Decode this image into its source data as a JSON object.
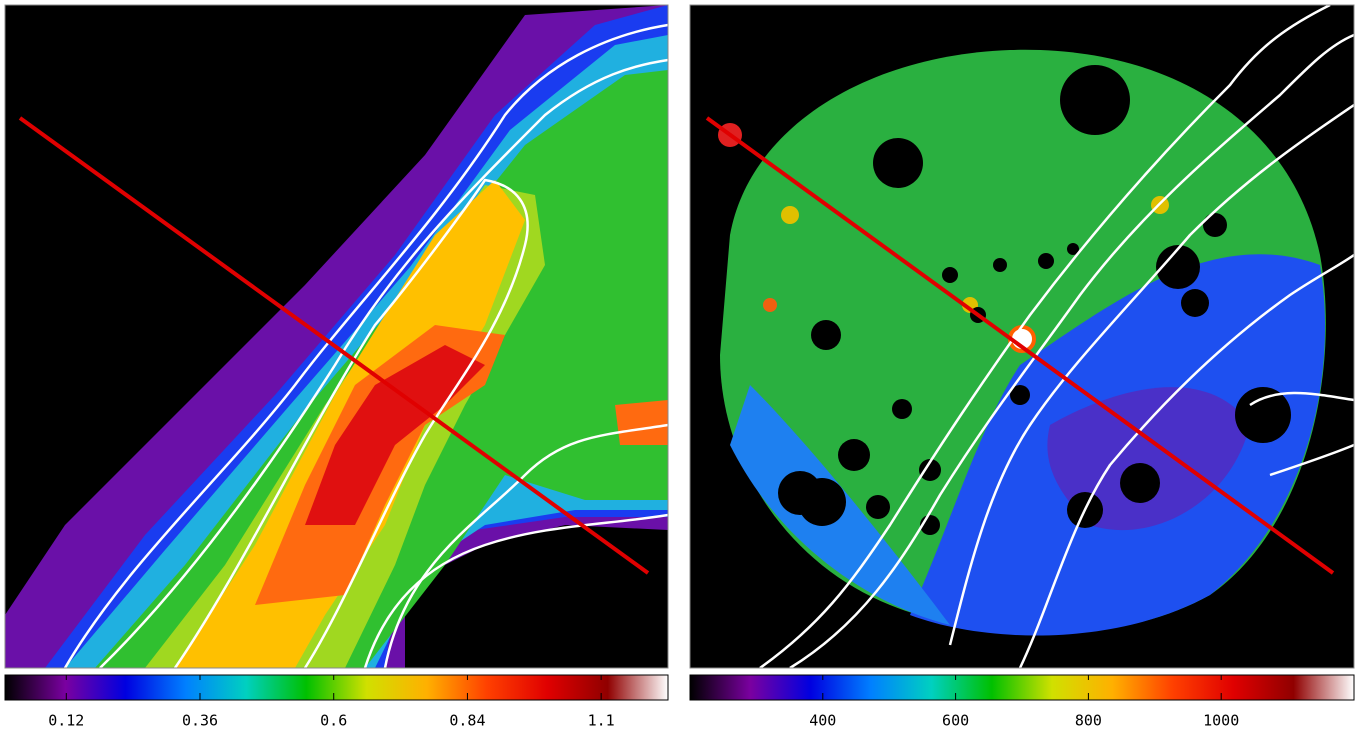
{
  "chart_data": [
    {
      "type": "image",
      "colormap": [
        "#000000",
        "#7a00a0",
        "#0000e0",
        "#0080ff",
        "#00d0c0",
        "#00c000",
        "#d0e000",
        "#ffb000",
        "#ff4000",
        "#e00000",
        "#900000",
        "#ffffff"
      ],
      "clim": [
        0.01,
        1.2
      ],
      "cticks": [
        0.12,
        0.36,
        0.6,
        0.84,
        {
          "value": 1.08,
          "label": "1.1"
        }
      ]
    },
    {
      "type": "image",
      "colormap": [
        "#000000",
        "#7a00a0",
        "#0000e0",
        "#0080ff",
        "#00d0c0",
        "#00c000",
        "#d0e000",
        "#ffb000",
        "#ff4000",
        "#e00000",
        "#900000",
        "#ffffff"
      ],
      "clim": [
        200,
        1200
      ],
      "cticks": [
        400,
        600,
        800,
        1000
      ]
    }
  ]
}
